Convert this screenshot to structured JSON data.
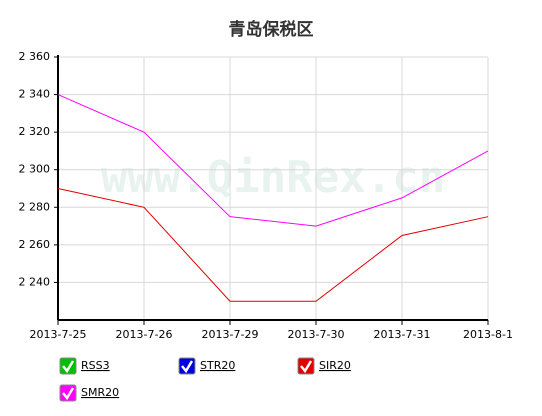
{
  "chart_data": {
    "type": "line",
    "title": "青岛保税区",
    "watermark": "www.QinRex.cn",
    "categories": [
      "2013-7-25",
      "2013-7-26",
      "2013-7-29",
      "2013-7-30",
      "2013-7-31",
      "2013-8-1"
    ],
    "series": [
      {
        "name": "RSS3",
        "color": "#00c000",
        "values": [
          null,
          null,
          null,
          null,
          null,
          null
        ]
      },
      {
        "name": "STR20",
        "color": "#0000e0",
        "values": [
          null,
          null,
          null,
          null,
          null,
          null
        ]
      },
      {
        "name": "SIR20",
        "color": "#e00000",
        "values": [
          2290,
          2280,
          2230,
          2230,
          2265,
          2275
        ]
      },
      {
        "name": "SMR20",
        "color": "#ff00ff",
        "values": [
          2340,
          2320,
          2275,
          2270,
          2285,
          2310
        ]
      }
    ],
    "ylim": [
      2220,
      2360
    ],
    "yticks": [
      {
        "value": 2240,
        "label": "2 240"
      },
      {
        "value": 2260,
        "label": "2 260"
      },
      {
        "value": 2280,
        "label": "2 280"
      },
      {
        "value": 2300,
        "label": "2 300"
      },
      {
        "value": 2320,
        "label": "2 320"
      },
      {
        "value": 2340,
        "label": "2 340"
      },
      {
        "value": 2360,
        "label": "2 360"
      }
    ],
    "grid": true
  }
}
